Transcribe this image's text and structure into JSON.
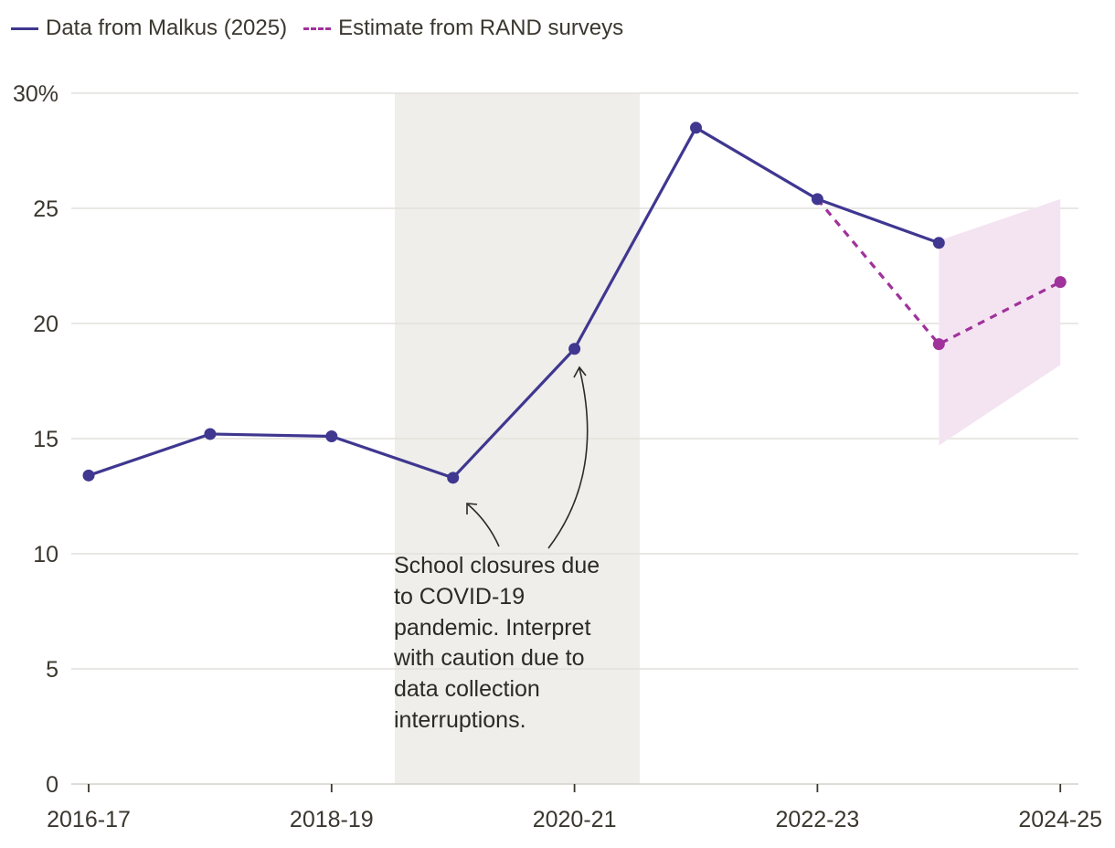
{
  "chart_data": {
    "type": "line",
    "title": "",
    "xlabel": "",
    "ylabel": "",
    "x": [
      "2016-17",
      "2017-18",
      "2018-19",
      "2019-20",
      "2020-21",
      "2021-22",
      "2022-23",
      "2023-24",
      "2024-25"
    ],
    "x_tick_labels": [
      "2016-17",
      "2018-19",
      "2020-21",
      "2022-23",
      "2024-25"
    ],
    "y_tick_labels": [
      "0",
      "5",
      "10",
      "15",
      "20",
      "25",
      "30%"
    ],
    "ylim": [
      0,
      30
    ],
    "grid": "horizontal",
    "legend_position": "top-left",
    "shaded_period": [
      "2019-20",
      "2020-21"
    ],
    "series": [
      {
        "name": "Data from Malkus (2025)",
        "style": "solid",
        "color": "#3f3790",
        "values": [
          13.4,
          15.2,
          15.1,
          13.3,
          18.9,
          28.5,
          25.4,
          23.5,
          null
        ]
      },
      {
        "name": "Estimate from RAND surveys",
        "style": "dashed",
        "color": "#a0329b",
        "values": [
          null,
          null,
          null,
          null,
          null,
          null,
          25.4,
          19.1,
          21.8
        ],
        "interval_lower": [
          null,
          null,
          null,
          null,
          null,
          null,
          null,
          14.7,
          18.2
        ],
        "interval_upper": [
          null,
          null,
          null,
          null,
          null,
          null,
          null,
          23.6,
          25.4
        ]
      }
    ],
    "annotation_lines": [
      "School closures due",
      "to COVID-19",
      "pandemic. Interpret",
      "with caution due to",
      "data collection",
      "interruptions."
    ]
  }
}
